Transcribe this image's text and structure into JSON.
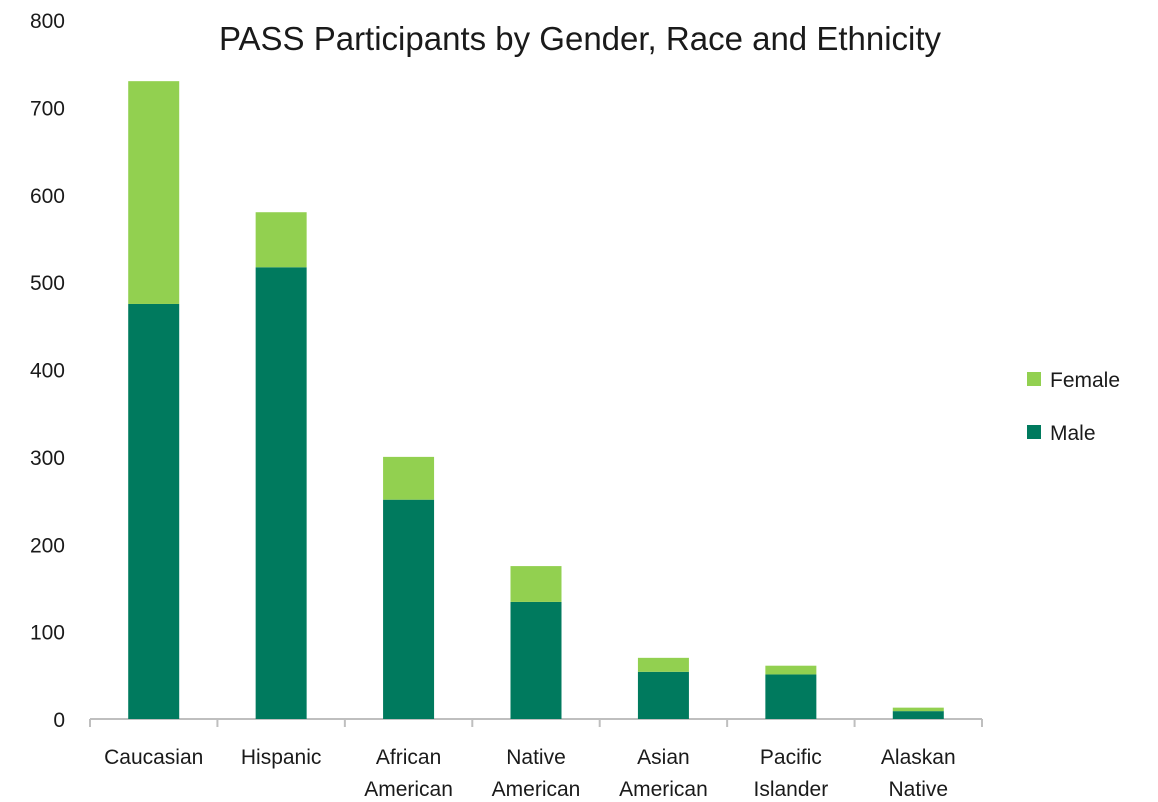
{
  "chart_data": {
    "type": "bar",
    "stacked": true,
    "title": "PASS Participants by Gender, Race and Ethnicity",
    "categories": [
      [
        "Caucasian"
      ],
      [
        "Hispanic"
      ],
      [
        "African",
        "American"
      ],
      [
        "Native",
        "American"
      ],
      [
        "Asian",
        "American"
      ],
      [
        "Pacific",
        "Islander"
      ],
      [
        "Alaskan",
        "Native"
      ]
    ],
    "series": [
      {
        "name": "Male",
        "color": "#007a5e",
        "values": [
          475,
          517,
          251,
          134,
          54,
          51,
          9
        ]
      },
      {
        "name": "Female",
        "color": "#92d050",
        "values": [
          255,
          63,
          49,
          41,
          16,
          10,
          4
        ]
      }
    ],
    "ylim": [
      0,
      800
    ],
    "yticks": [
      0,
      100,
      200,
      300,
      400,
      500,
      600,
      700,
      800
    ],
    "grid": false,
    "legend": {
      "position": "right",
      "order": [
        "Female",
        "Male"
      ]
    }
  }
}
